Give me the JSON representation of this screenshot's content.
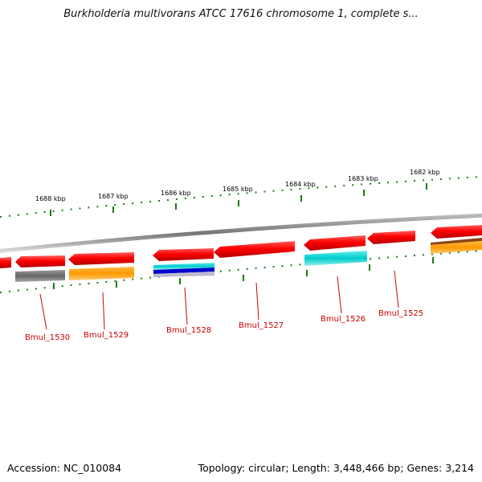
{
  "title": "Burkholderia multivorans ATCC 17616 chromosome 1, complete s...",
  "footer": {
    "accession_label": "Accession:",
    "accession": "NC_010084",
    "topology_label": "Topology:",
    "topology": "circular",
    "length_label": "Length:",
    "length": "3,448,466 bp",
    "genes_label": "Genes:",
    "genes": "3,214"
  },
  "scale": {
    "ticks": [
      "1688 kbp",
      "1687 kbp",
      "1686 kbp",
      "1685 kbp",
      "1684 kbp",
      "1683 kbp",
      "1682 kbp"
    ]
  },
  "genes": [
    {
      "label": "Bmul_1530"
    },
    {
      "label": "Bmul_1529"
    },
    {
      "label": "Bmul_1528"
    },
    {
      "label": "Bmul_1527"
    },
    {
      "label": "Bmul_1526"
    },
    {
      "label": "Bmul_1525"
    }
  ],
  "colors": {
    "cds": "#e00000",
    "backbone": "#888888",
    "tick": "#1a7a1a",
    "label": "#cc0000",
    "cog_grey": "#666666",
    "cog_orange": "#ff9900",
    "cog_cyan": "#00cccc",
    "cog_blue": "#0000cc"
  }
}
